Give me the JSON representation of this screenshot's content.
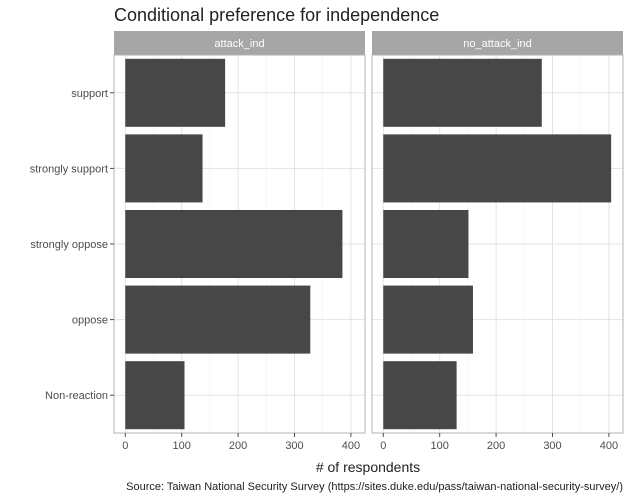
{
  "chart_data": {
    "type": "bar",
    "orientation": "horizontal",
    "title": "Conditional preference for independence",
    "xlabel": "# of respondents",
    "ylabel": "",
    "caption": "Source: Taiwan National Security Survey (https://sites.duke.edu/pass/taiwan-national-security-survey/)",
    "categories": [
      "support",
      "strongly support",
      "strongly oppose",
      "oppose",
      "Non-reaction"
    ],
    "xlim": [
      -20,
      425
    ],
    "xticks": [
      0,
      100,
      200,
      300,
      400
    ],
    "grid": true,
    "legend": "none",
    "bar_color": "#474747",
    "strip_color": "#a6a6a6",
    "panels": [
      {
        "name": "attack_ind",
        "values": [
          177,
          137,
          385,
          328,
          105
        ]
      },
      {
        "name": "no_attack_ind",
        "values": [
          281,
          404,
          151,
          159,
          130
        ]
      }
    ]
  }
}
